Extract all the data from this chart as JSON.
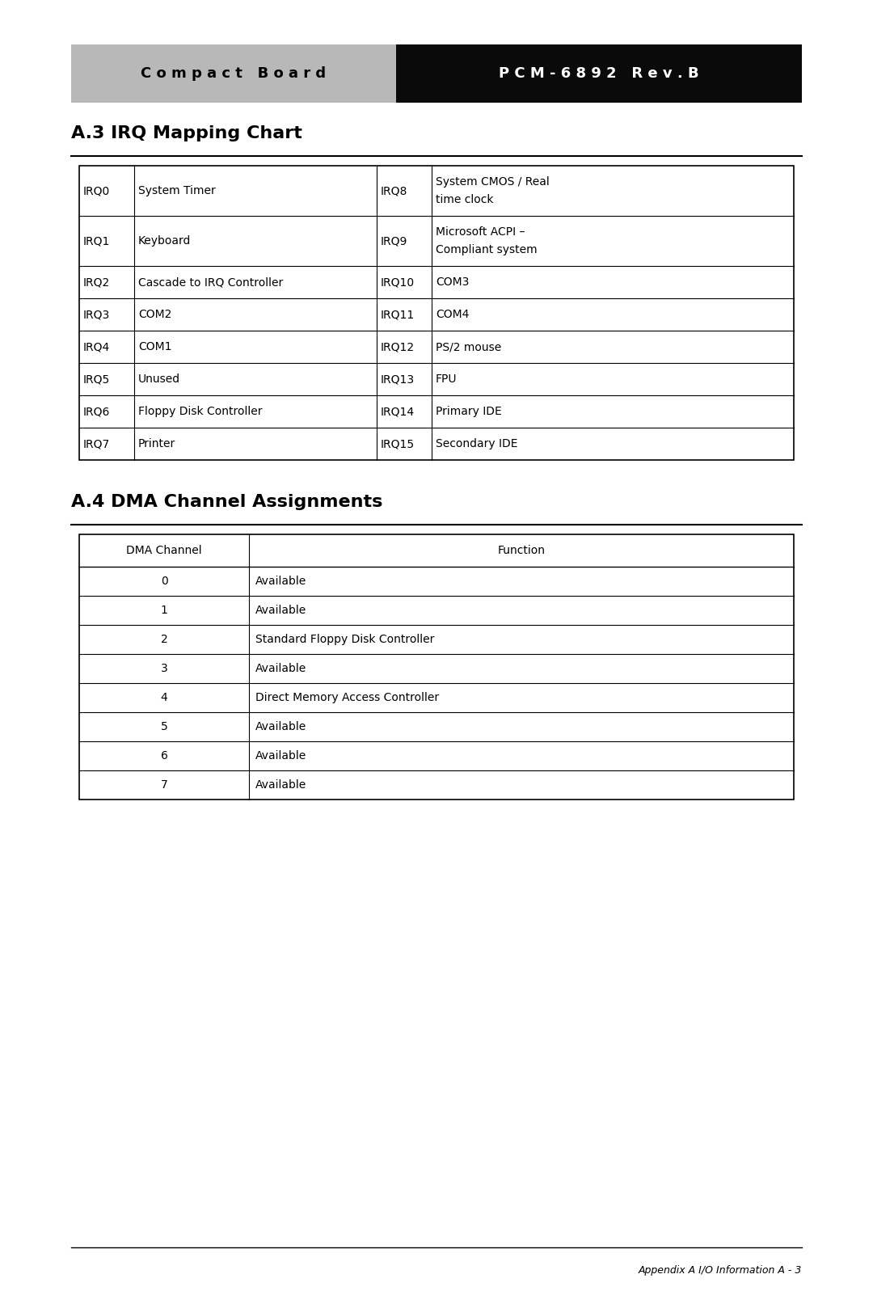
{
  "header_left_text": "C o m p a c t   B o a r d",
  "header_right_text": "P C M - 6 8 9 2   R e v . B",
  "header_left_bg": "#b8b8b8",
  "header_right_bg": "#0a0a0a",
  "header_left_color": "#000000",
  "header_right_color": "#ffffff",
  "irq_title": "A.3 IRQ Mapping Chart",
  "irq_left": [
    [
      "IRQ0",
      "System Timer"
    ],
    [
      "IRQ1",
      "Keyboard"
    ],
    [
      "IRQ2",
      "Cascade to IRQ Controller"
    ],
    [
      "IRQ3",
      "COM2"
    ],
    [
      "IRQ4",
      "COM1"
    ],
    [
      "IRQ5",
      "Unused"
    ],
    [
      "IRQ6",
      "Floppy Disk Controller"
    ],
    [
      "IRQ7",
      "Printer"
    ]
  ],
  "irq_right": [
    [
      "IRQ8",
      "System CMOS / Real\ntime clock"
    ],
    [
      "IRQ9",
      "Microsoft ACPI –\nCompliant system"
    ],
    [
      "IRQ10",
      "COM3"
    ],
    [
      "IRQ11",
      "COM4"
    ],
    [
      "IRQ12",
      "PS/2 mouse"
    ],
    [
      "IRQ13",
      "FPU"
    ],
    [
      "IRQ14",
      "Primary IDE"
    ],
    [
      "IRQ15",
      "Secondary IDE"
    ]
  ],
  "dma_title": "A.4 DMA Channel Assignments",
  "dma_header": [
    "DMA Channel",
    "Function"
  ],
  "dma_rows": [
    [
      "0",
      "Available"
    ],
    [
      "1",
      "Available"
    ],
    [
      "2",
      "Standard Floppy Disk Controller"
    ],
    [
      "3",
      "Available"
    ],
    [
      "4",
      "Direct Memory Access Controller"
    ],
    [
      "5",
      "Available"
    ],
    [
      "6",
      "Available"
    ],
    [
      "7",
      "Available"
    ]
  ],
  "footer_text": "Appendix A I/O Information A - 3",
  "bg_color": "#ffffff",
  "text_color": "#000000"
}
